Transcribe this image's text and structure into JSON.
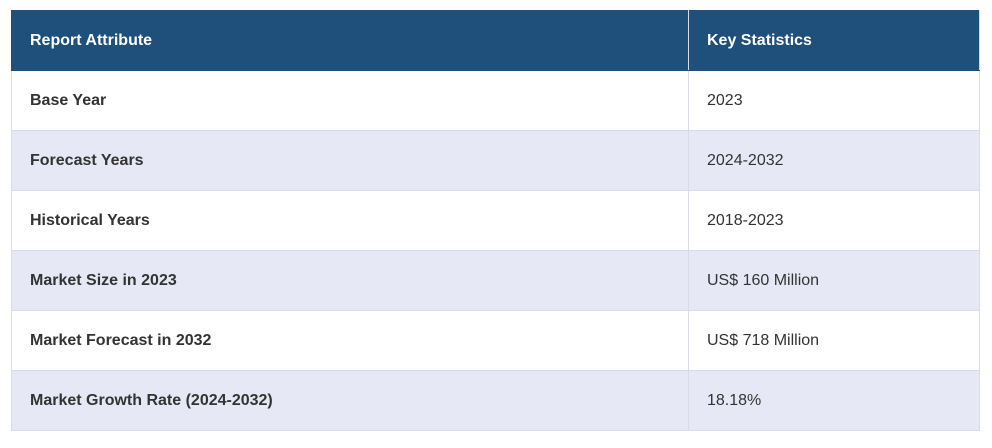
{
  "table": {
    "header": [
      "Report Attribute",
      "Key Statistics"
    ],
    "rows": [
      [
        "Base Year",
        "2023"
      ],
      [
        "Forecast Years",
        "2024-2032"
      ],
      [
        "Historical Years",
        "2018-2023"
      ],
      [
        "Market Size in 2023",
        "US$ 160 Million"
      ],
      [
        "Market Forecast in 2032",
        "US$ 718 Million"
      ],
      [
        "Market Growth Rate (2024-2032)",
        "18.18%"
      ]
    ]
  }
}
